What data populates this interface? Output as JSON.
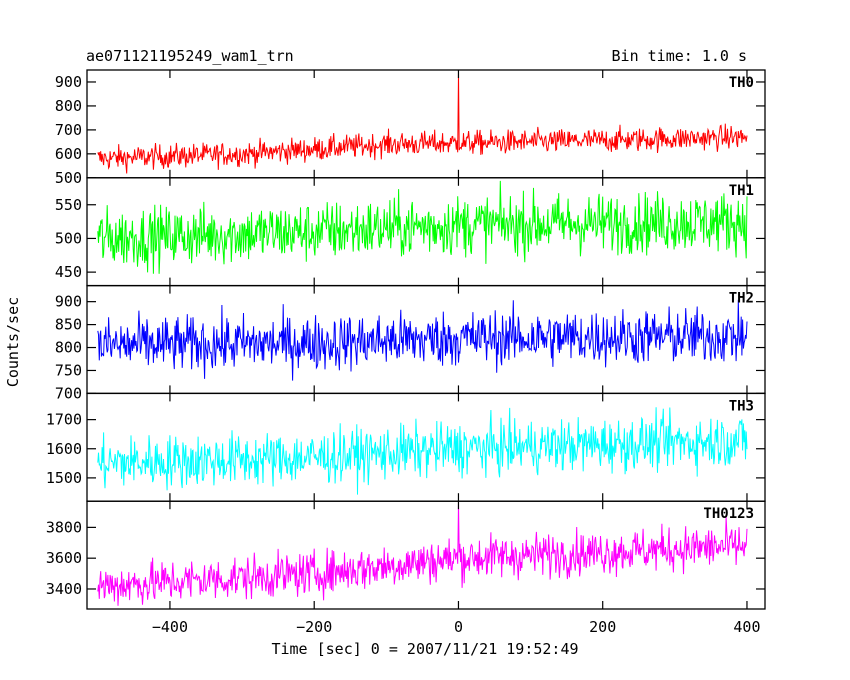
{
  "chart_data": {
    "type": "line",
    "title": "ae071121195249_wam1_trn",
    "bin_time_label": "Bin time: 1.0 s",
    "xlabel": "Time [sec] 0 = 2007/11/21 19:52:49",
    "ylabel": "Counts/sec",
    "xlim": [
      -515,
      425
    ],
    "x_range_data": [
      -500,
      400
    ],
    "x_ticks": [
      -400,
      -200,
      0,
      200,
      400
    ],
    "x_tick_labels": [
      "−400",
      "−200",
      "0",
      "200",
      "400"
    ],
    "grid": false,
    "panels": [
      {
        "name": "TH0",
        "color": "#ff0000",
        "ylim": [
          500,
          950
        ],
        "y_ticks": [
          500,
          600,
          700,
          800,
          900
        ],
        "y_tick_labels": [
          "500",
          "600",
          "700",
          "800",
          "900"
        ],
        "trend": [
          [
            -500,
            580
          ],
          [
            -300,
            600
          ],
          [
            -100,
            640
          ],
          [
            100,
            650
          ],
          [
            400,
            670
          ]
        ],
        "noise": 25,
        "spikes": [
          {
            "x": 0,
            "y": 945
          }
        ]
      },
      {
        "name": "TH1",
        "color": "#00ff00",
        "ylim": [
          430,
          590
        ],
        "y_ticks": [
          450,
          500,
          550
        ],
        "y_tick_labels": [
          "450",
          "500",
          "550"
        ],
        "trend": [
          [
            -500,
            500
          ],
          [
            -200,
            510
          ],
          [
            0,
            520
          ],
          [
            400,
            525
          ]
        ],
        "noise": 22,
        "spikes": []
      },
      {
        "name": "TH2",
        "color": "#0000ff",
        "ylim": [
          700,
          935
        ],
        "y_ticks": [
          700,
          750,
          800,
          850,
          900
        ],
        "y_tick_labels": [
          "700",
          "750",
          "800",
          "850",
          "900"
        ],
        "trend": [
          [
            -500,
            805
          ],
          [
            -200,
            810
          ],
          [
            0,
            820
          ],
          [
            400,
            825
          ]
        ],
        "noise": 30,
        "spikes": []
      },
      {
        "name": "TH3",
        "color": "#00ffff",
        "ylim": [
          1420,
          1790
        ],
        "y_ticks": [
          1500,
          1600,
          1700
        ],
        "y_tick_labels": [
          "1500",
          "1600",
          "1700"
        ],
        "trend": [
          [
            -500,
            1550
          ],
          [
            -200,
            1570
          ],
          [
            0,
            1600
          ],
          [
            400,
            1630
          ]
        ],
        "noise": 45,
        "spikes": []
      },
      {
        "name": "TH0123",
        "color": "#ff00ff",
        "ylim": [
          3270,
          3970
        ],
        "y_ticks": [
          3400,
          3600,
          3800
        ],
        "y_tick_labels": [
          "3400",
          "3600",
          "3800"
        ],
        "trend": [
          [
            -500,
            3420
          ],
          [
            -200,
            3500
          ],
          [
            0,
            3600
          ],
          [
            200,
            3640
          ],
          [
            400,
            3680
          ]
        ],
        "noise": 70,
        "spikes": [
          {
            "x": 0,
            "y": 3965
          }
        ]
      }
    ]
  }
}
